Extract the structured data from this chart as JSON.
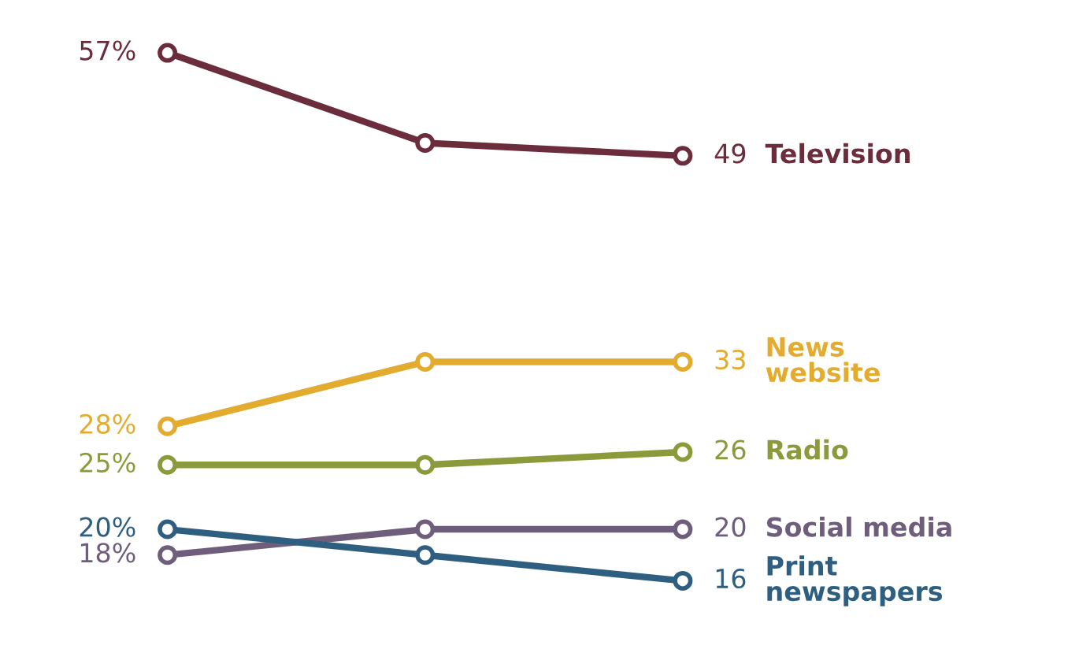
{
  "chart_data": {
    "type": "line",
    "categories": [
      null,
      null,
      null
    ],
    "series": [
      {
        "name": "Television",
        "color": "#6b2c3c",
        "values": [
          57,
          50,
          49
        ],
        "value_labels": [
          "57%",
          null,
          "49"
        ]
      },
      {
        "name": "News\nwebsite",
        "color": "#e3ac2f",
        "values": [
          28,
          33,
          33
        ],
        "value_labels": [
          "28%",
          null,
          "33"
        ]
      },
      {
        "name": "Radio",
        "color": "#8c9a3b",
        "values": [
          25,
          25,
          26
        ],
        "value_labels": [
          "25%",
          null,
          "26"
        ]
      },
      {
        "name": "Social media",
        "color": "#6f5d7c",
        "values": [
          18,
          20,
          20
        ],
        "value_labels": [
          "18%",
          null,
          "20"
        ]
      },
      {
        "name": "Print\nnewspapers",
        "color": "#2f5f80",
        "values": [
          20,
          18,
          16
        ],
        "value_labels": [
          "20%",
          null,
          "16"
        ]
      }
    ],
    "marker": "circle",
    "line_style": "solid"
  }
}
